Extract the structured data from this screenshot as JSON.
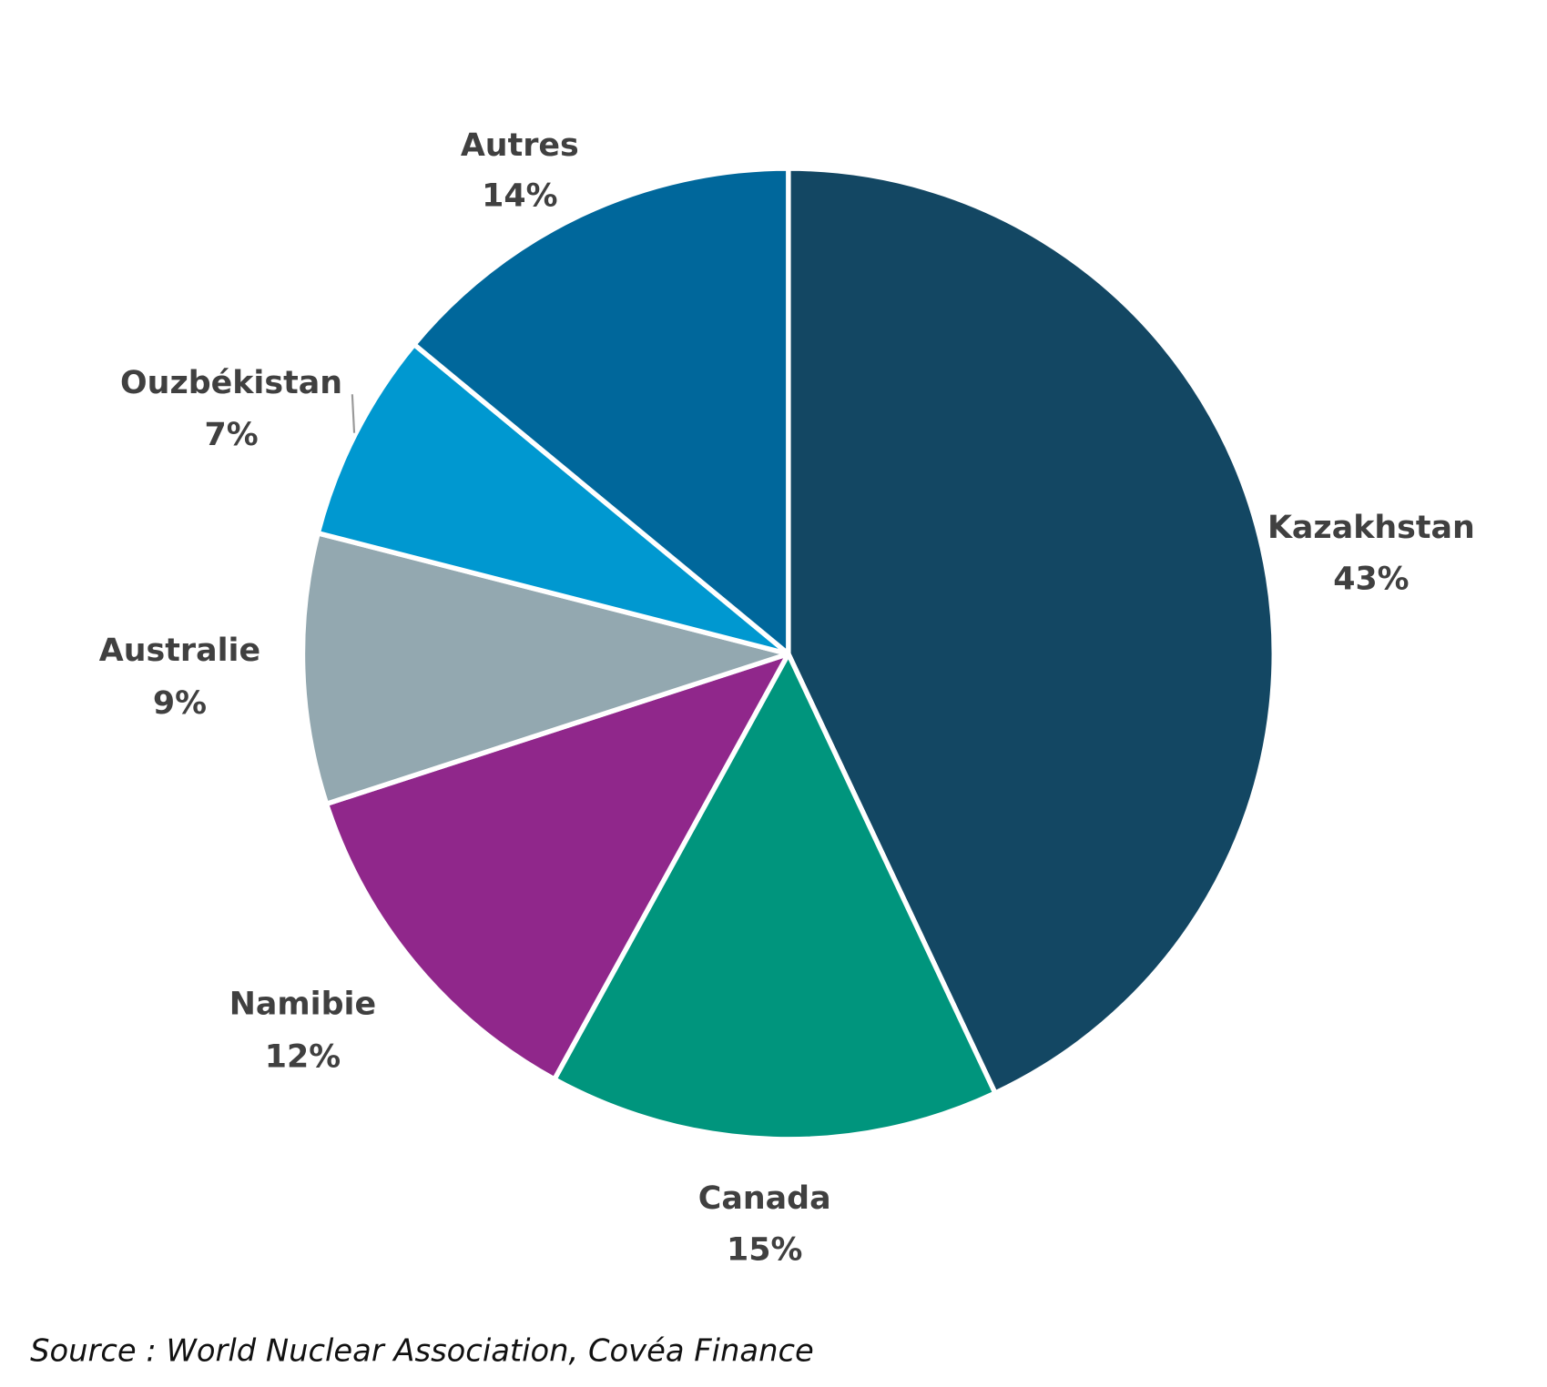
{
  "chart_data": {
    "type": "pie",
    "start": "top",
    "direction": "clockwise",
    "slices": [
      {
        "label": "Kazakhstan",
        "value": 43,
        "display": "43%",
        "color": "#134763"
      },
      {
        "label": "Canada",
        "value": 15,
        "display": "15%",
        "color": "#00957d"
      },
      {
        "label": "Namibie",
        "value": 12,
        "display": "12%",
        "color": "#90278b"
      },
      {
        "label": "Australie",
        "value": 9,
        "display": "9%",
        "color": "#93a8b0"
      },
      {
        "label": "Ouzbékistan",
        "value": 7,
        "display": "7%",
        "color": "#0098d0"
      },
      {
        "label": "Autres",
        "value": 14,
        "display": "14%",
        "color": "#00679b"
      }
    ]
  },
  "source": "Source : World Nuclear Association, Covéa Finance"
}
